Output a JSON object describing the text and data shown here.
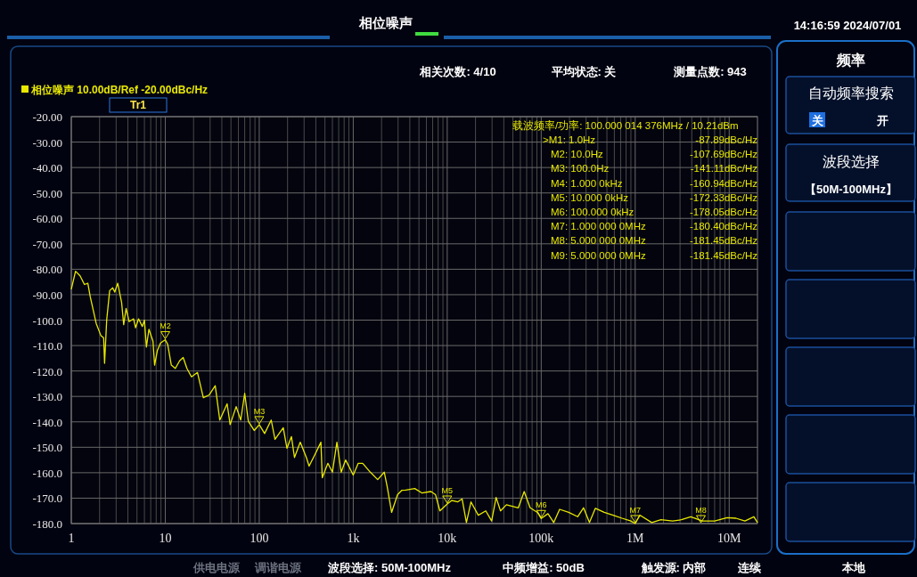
{
  "chart_data": {
    "type": "line",
    "title": "相位噪声",
    "log": "x",
    "grid": true,
    "legend": "top left",
    "line_style": "solid",
    "marker": "none",
    "xlim": [
      1,
      20000000
    ],
    "ylim": [
      -180,
      -20
    ],
    "xticks": [
      1,
      10,
      100,
      {
        "value": 1000,
        "label": "1k"
      },
      {
        "value": 10000,
        "label": "10k"
      },
      {
        "value": 100000,
        "label": "100k"
      },
      {
        "value": 1000000,
        "label": "1M"
      },
      {
        "value": 10000000,
        "label": "10M"
      }
    ],
    "yticks": [
      {
        "value": -20,
        "label": "-20.00"
      },
      {
        "value": -30,
        "label": "-30.00"
      },
      {
        "value": -40,
        "label": "-40.00"
      },
      {
        "value": -50,
        "label": "-50.00"
      },
      {
        "value": -60,
        "label": "-60.00"
      },
      {
        "value": -70,
        "label": "-70.00"
      },
      {
        "value": -80,
        "label": "-80.00"
      },
      {
        "value": -90,
        "label": "-90.00"
      },
      {
        "value": -100,
        "label": "-100.0"
      },
      {
        "value": -110,
        "label": "-110.0"
      },
      {
        "value": -120,
        "label": "-120.0"
      },
      {
        "value": -130,
        "label": "-130.0"
      },
      {
        "value": -140,
        "label": "-140.0"
      },
      {
        "value": -150,
        "label": "-150.0"
      },
      {
        "value": -160,
        "label": "-160.0"
      },
      {
        "value": -170,
        "label": "-170.0"
      },
      {
        "value": -180,
        "label": "-180.0"
      }
    ],
    "series": [
      {
        "name": "相位噪声 10.00dB/Ref -20.00dBc/Hz",
        "color": "#e8e800",
        "x": [
          1,
          1.11,
          1.24,
          1.38,
          1.5,
          1.59,
          1.84,
          2.06,
          2.21,
          2.26,
          2.38,
          2.56,
          2.76,
          2.9,
          3.12,
          3.43,
          3.61,
          3.83,
          4.12,
          4.6,
          4.83,
          5.2,
          5.7,
          6,
          6.3,
          6.7,
          7.4,
          7.7,
          8.25,
          8.9,
          10,
          10.6,
          11.6,
          12.8,
          14.2,
          15.5,
          17,
          19,
          22,
          25.4,
          29.4,
          34,
          38,
          45.5,
          49,
          56.8,
          63.5,
          70,
          76.5,
          88.4,
          100,
          114,
          134,
          147,
          180,
          197,
          220,
          237,
          273,
          317,
          339,
          392,
          453,
          468,
          537,
          600,
          670,
          745,
          830,
          1000,
          1130,
          1260,
          1520,
          1820,
          2140,
          2300,
          2560,
          2960,
          3300,
          3620,
          4510,
          5400,
          6710,
          7500,
          8350,
          10000,
          11200,
          12900,
          14400,
          16000,
          17900,
          21400,
          25700,
          29700,
          33100,
          36900,
          42600,
          49300,
          57000,
          65900,
          76200,
          91200,
          100000,
          118000,
          136000,
          157000,
          196000,
          244000,
          282000,
          326000,
          377000,
          468000,
          582000,
          724000,
          900000,
          1000000,
          1120000,
          1500000,
          1880000,
          2500000,
          3100000,
          3900000,
          5200000,
          7000000,
          9500000,
          11800000,
          14700000,
          18300000,
          20000000
        ],
        "values": [
          -87.9,
          -80.8,
          -82.6,
          -86,
          -85.5,
          -90.8,
          -101.3,
          -106,
          -107,
          -117,
          -100,
          -88.4,
          -87.3,
          -89,
          -85.5,
          -93,
          -101.8,
          -95.4,
          -100.6,
          -99.5,
          -103,
          -99.5,
          -102.5,
          -100,
          -110.6,
          -103.6,
          -108.3,
          -117.7,
          -111.9,
          -109,
          -107.7,
          -109.5,
          -117.7,
          -119,
          -116,
          -114.7,
          -119,
          -122.3,
          -120.6,
          -130.5,
          -129.4,
          -125.8,
          -139.3,
          -132.9,
          -141.1,
          -134,
          -139.3,
          -128.8,
          -139.8,
          -143.4,
          -141.1,
          -144.6,
          -139.3,
          -146.9,
          -142.3,
          -150.4,
          -145.8,
          -154,
          -148,
          -154,
          -157.4,
          -152.8,
          -148,
          -162,
          -156.3,
          -159.8,
          -148,
          -159.8,
          -155,
          -160.9,
          -156.3,
          -156.3,
          -159.8,
          -162.7,
          -159.8,
          -165.6,
          -175.6,
          -168.6,
          -166.9,
          -166.8,
          -166.2,
          -168,
          -167.4,
          -168.6,
          -175,
          -172.3,
          -170.9,
          -171.5,
          -170.3,
          -179.6,
          -171.5,
          -176.7,
          -175,
          -179,
          -169.7,
          -175,
          -172.6,
          -173.2,
          -173.8,
          -167.4,
          -173.8,
          -175.6,
          -178,
          -176.1,
          -179.6,
          -174.4,
          -175.6,
          -177.3,
          -173.8,
          -179.6,
          -174,
          -175.6,
          -176.7,
          -177.9,
          -179,
          -180,
          -176.7,
          -179.6,
          -178.5,
          -179,
          -178.5,
          -177.3,
          -179,
          -179,
          -177.7,
          -177.9,
          -179,
          -177.3,
          -179.6
        ]
      }
    ],
    "annotations": [
      "14:16:59  2024/07/01",
      "相关次数: 4/10",
      "平均状态: 关",
      "测量点数: 943",
      "Tr1",
      "载波频率/功率: 100.000 014 376MHz / 10.21dBm",
      ">M1: 1.0Hz",
      "-87.89dBc/Hz",
      "M2: 10.0Hz",
      "-107.69dBc/Hz",
      "M3: 100.0Hz",
      "-141.11dBc/Hz",
      "M4: 1.000 0kHz",
      "-160.94dBc/Hz",
      "M5: 10.000 0kHz",
      "-172.33dBc/Hz",
      "M6: 100.000 0kHz",
      "-178.05dBc/Hz",
      "M7: 1.000 000 0MHz",
      "-180.40dBc/Hz",
      "M8: 5.000 000 0MHz",
      "-181.45dBc/Hz",
      "M9: 5.000 000 0MHz",
      "-181.45dBc/Hz",
      "频率",
      "自动频率搜索",
      "关",
      "开",
      "波段选择",
      "【50M-100MHz】",
      "供电电源",
      "调谐电源",
      "波段选择: 50M-100MHz",
      "中频增益: 50dB",
      "触发源: 内部",
      "连续",
      "本地",
      {
        "text": "M2",
        "x": 10,
        "y": -107.7
      },
      {
        "text": "M3",
        "x": 100,
        "y": -141.1
      },
      {
        "text": "M5",
        "x": 10000,
        "y": -172.3
      },
      {
        "text": "M6",
        "x": 100000,
        "y": -178
      },
      {
        "text": "M7",
        "x": 1000000,
        "y": -180
      },
      {
        "text": "M8",
        "x": 5000000,
        "y": -180
      }
    ]
  }
}
